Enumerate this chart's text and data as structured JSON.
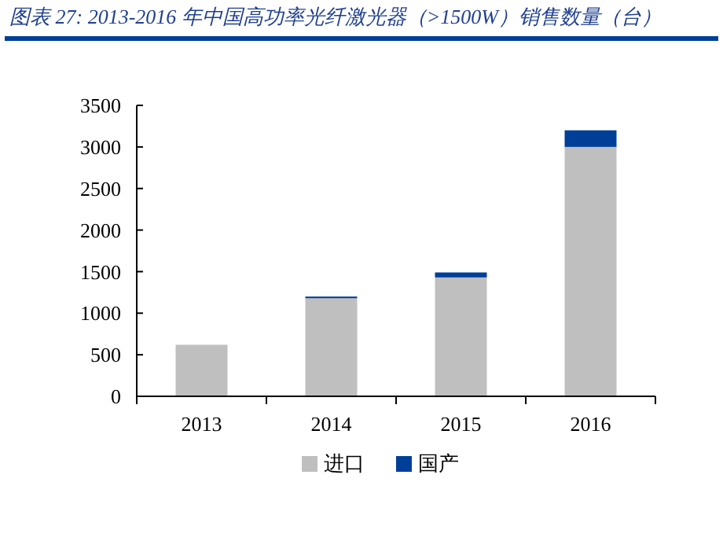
{
  "chart_data": {
    "type": "bar",
    "title": "图表 27: 2013-2016 年中国高功率光纤激光器（>1500W）销售数量（台）",
    "categories": [
      "2013",
      "2014",
      "2015",
      "2016"
    ],
    "stacked": true,
    "series": [
      {
        "name": "进口",
        "color": "#bfbfbf",
        "values": [
          620,
          1180,
          1430,
          3000
        ]
      },
      {
        "name": "国产",
        "color": "#003f98",
        "values": [
          null,
          20,
          60,
          200
        ]
      }
    ],
    "ylim": [
      0,
      3500
    ],
    "yticks": [
      0,
      500,
      1000,
      1500,
      2000,
      2500,
      3000,
      3500
    ],
    "grid": false,
    "legend": "bottom"
  }
}
